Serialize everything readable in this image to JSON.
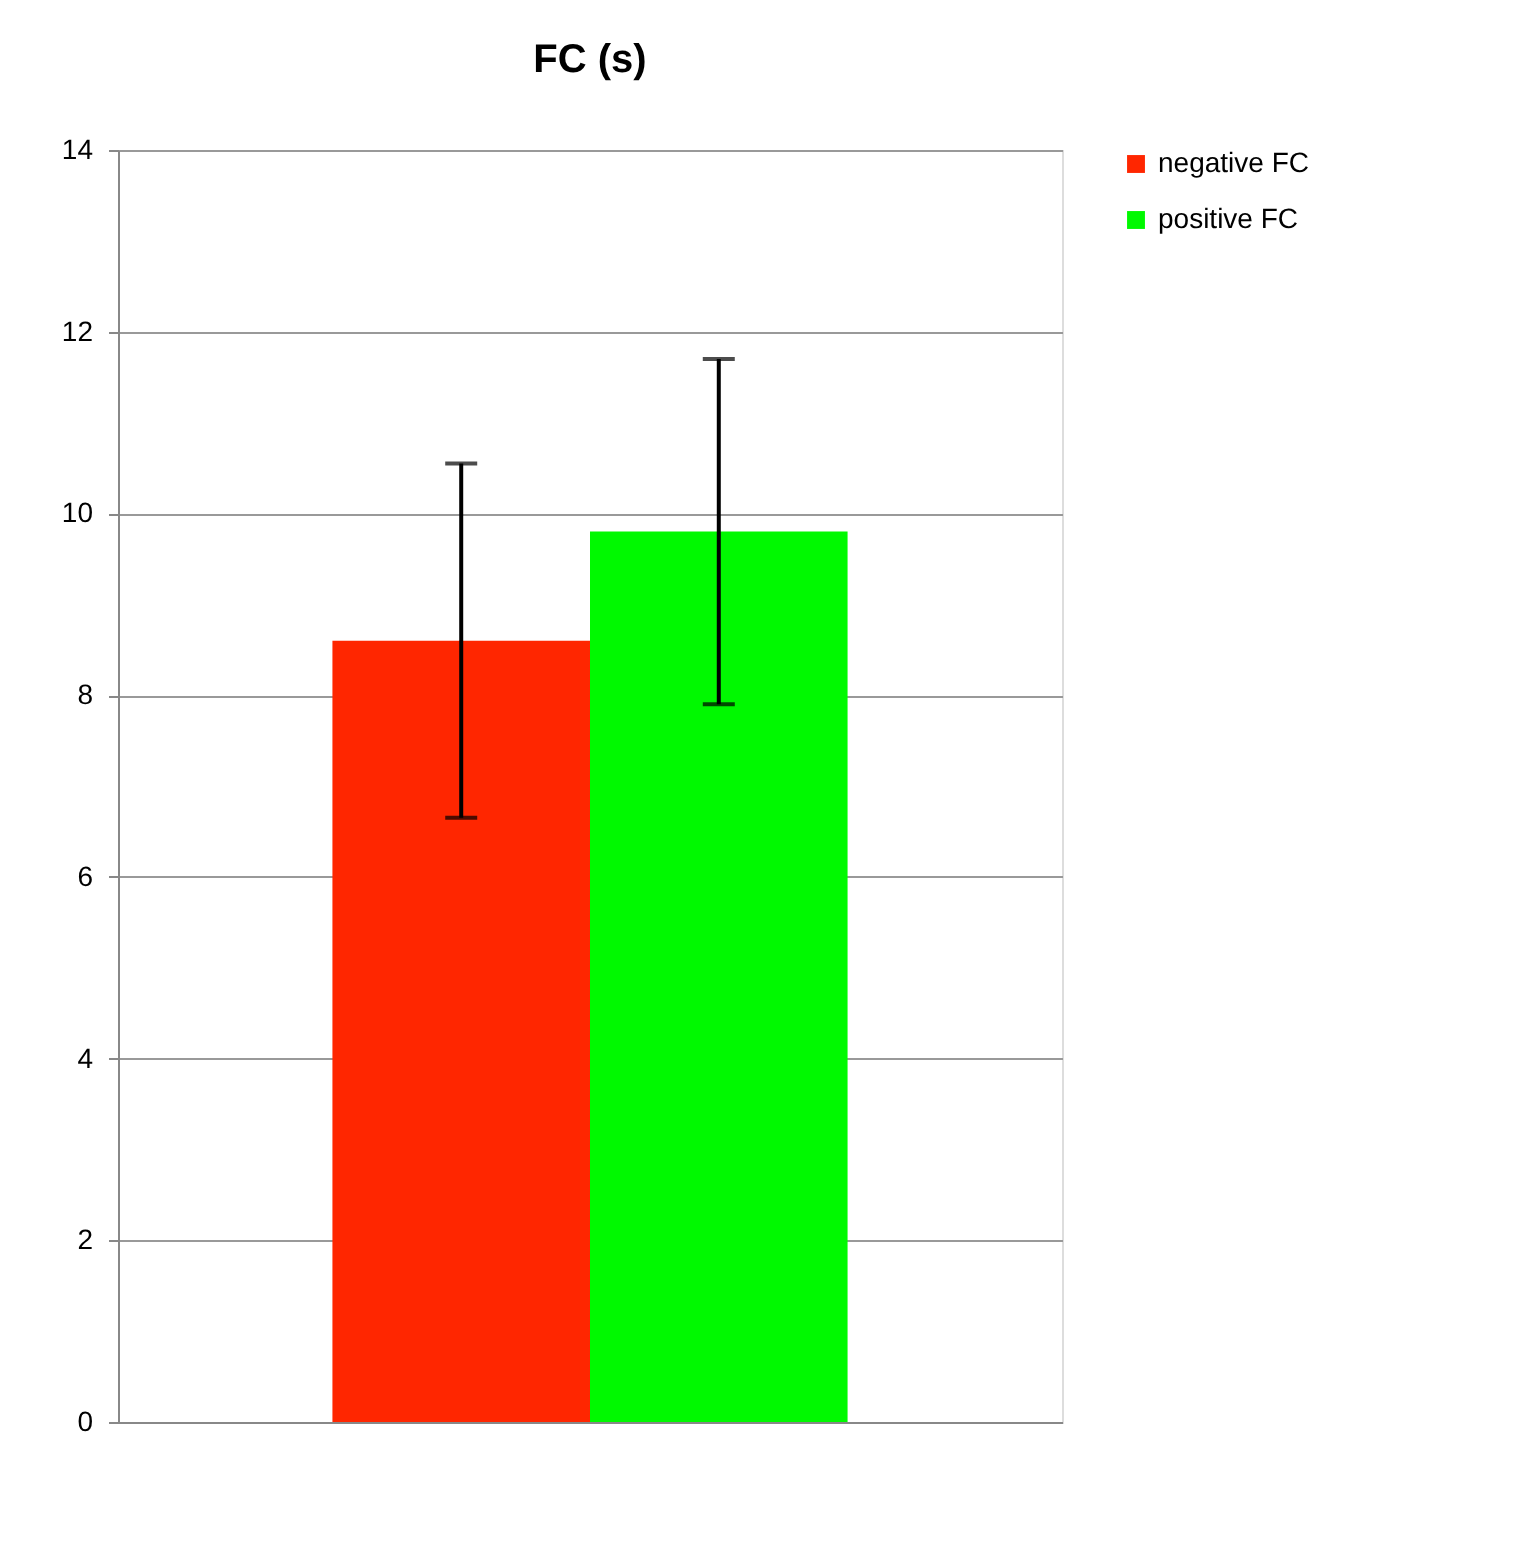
{
  "chart_data": {
    "type": "bar",
    "title": "FC (s)",
    "categories": [
      null
    ],
    "series": [
      {
        "name": "negative FC",
        "color": "#ff2600",
        "values": [
          8.6
        ],
        "errors": [
          1.95
        ]
      },
      {
        "name": "positive FC",
        "color": "#00f900",
        "values": [
          9.8
        ],
        "errors": [
          1.9
        ]
      }
    ],
    "ylim": [
      0,
      14
    ],
    "yticks": [
      0,
      2,
      4,
      6,
      8,
      10,
      12,
      14
    ],
    "grid": "y",
    "legend": "right"
  }
}
